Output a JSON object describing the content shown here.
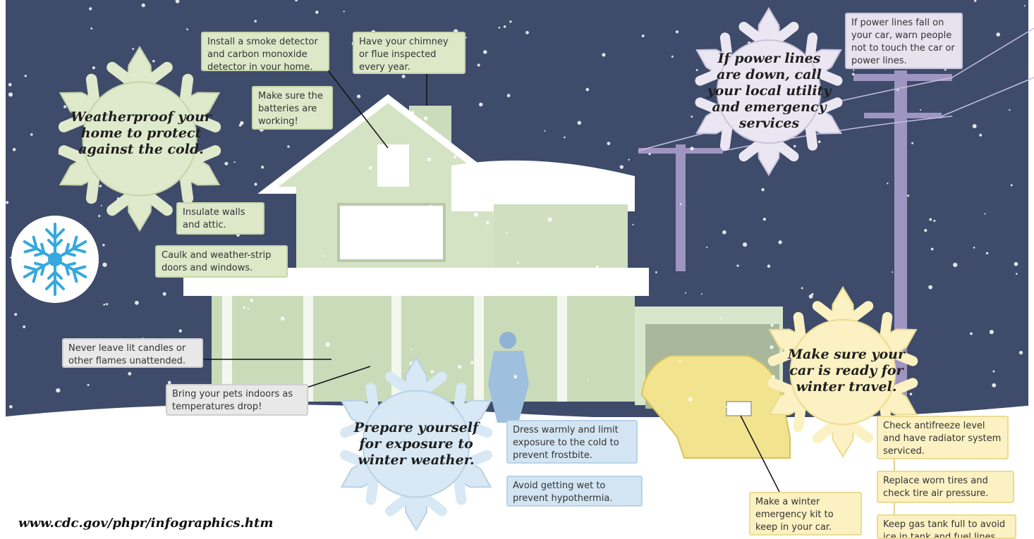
{
  "snowflakes": {
    "weatherproof": "Weatherproof your home to protect against the cold.",
    "power": "If power lines are down, call your local utility and emergency services",
    "prepare": "Prepare yourself for exposure to winter weather.",
    "car": "Make sure your car is ready for winter travel."
  },
  "tips": [
    "Install a smoke detector and carbon monoxide detector in your home.",
    "Have your chimney or flue inspected every year.",
    "Make sure the batteries are working!",
    "Insulate walls and attic.",
    "Caulk and weather-strip doors and windows.",
    "Never leave lit candles or other flames unattended.",
    "Bring your pets indoors as temperatures drop!",
    "Dress warmly and limit exposure to the cold to prevent frostbite.",
    "Avoid getting wet to prevent hypothermia.",
    "If power lines fall on your car, warn people not to touch the car or power lines.",
    "Check antifreeze level and have radiator system serviced.",
    "Replace worn tires and check tire air pressure.",
    "Make a winter emergency kit to keep in your car.",
    "Keep gas tank full to avoid ice in tank and fuel lines."
  ],
  "url": "www.cdc.gov/phpr/infographics.htm"
}
